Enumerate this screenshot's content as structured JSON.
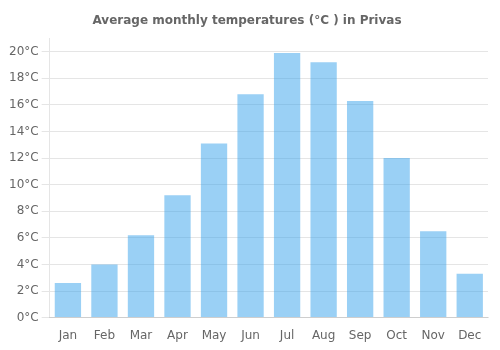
{
  "chart_data": {
    "type": "bar",
    "title": "Average monthly temperatures (°C ) in Privas",
    "categories": [
      "Jan",
      "Feb",
      "Mar",
      "Apr",
      "May",
      "Jun",
      "Jul",
      "Aug",
      "Sep",
      "Oct",
      "Nov",
      "Dec"
    ],
    "values": [
      2.6,
      4.0,
      6.2,
      9.2,
      13.1,
      16.8,
      19.9,
      19.2,
      16.3,
      12.0,
      6.5,
      3.3
    ],
    "ylim": [
      0,
      21
    ],
    "yticks": [
      {
        "value": 0,
        "label": "0°C"
      },
      {
        "value": 2,
        "label": "2°C"
      },
      {
        "value": 4,
        "label": "4°C"
      },
      {
        "value": 6,
        "label": "6°C"
      },
      {
        "value": 8,
        "label": "8°C"
      },
      {
        "value": 10,
        "label": "10°C"
      },
      {
        "value": 12,
        "label": "12°C"
      },
      {
        "value": 14,
        "label": "14°C"
      },
      {
        "value": 16,
        "label": "16°C"
      },
      {
        "value": 18,
        "label": "18°C"
      },
      {
        "value": 20,
        "label": "20°C"
      }
    ],
    "grid": true
  }
}
